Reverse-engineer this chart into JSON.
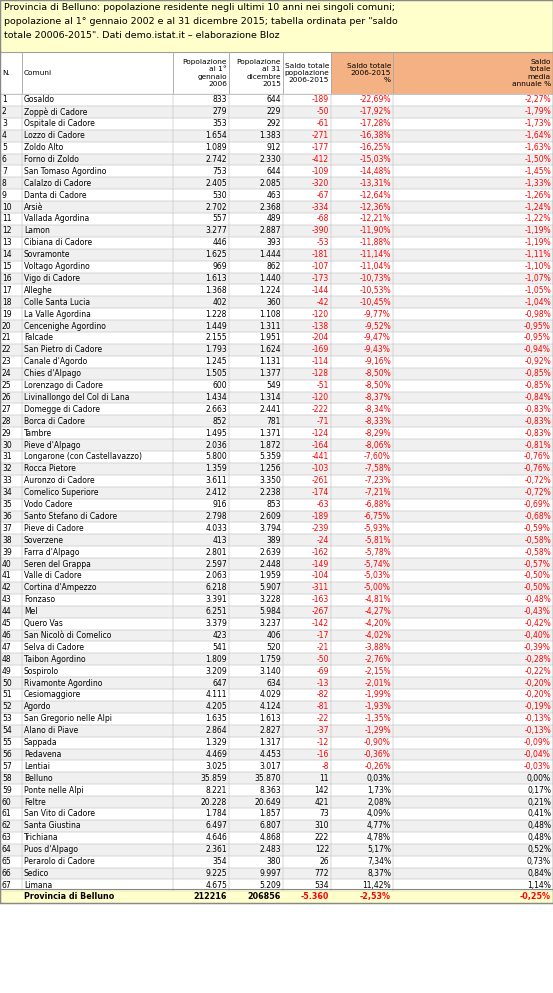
{
  "title": "Provincia di Belluno: popolazione residente negli ultimi 10 anni nei singoli comuni;\npopolazione al 1° gennaio 2002 e al 31 dicembre 2015; tabella ordinata per \"saldo\ntotale 20006-2015\". Dati demo.istat.it – elaborazione Bloz",
  "title_bg": "#ffffcc",
  "orange_bg": "#f4b183",
  "white_bg": "#ffffff",
  "footer_bg": "#ffffcc",
  "red_color": "#ff0000",
  "black_color": "#000000",
  "grid_color": "#aaaaaa",
  "rows": [
    [
      1,
      "Gosaldo",
      833,
      644,
      -189,
      "-22,69%",
      "-2,27%"
    ],
    [
      2,
      "Zoppè di Cadore",
      279,
      229,
      -50,
      "-17,92%",
      "-1,79%"
    ],
    [
      3,
      "Ospitale di Cadore",
      353,
      292,
      -61,
      "-17,28%",
      "-1,73%"
    ],
    [
      4,
      "Lozzo di Cadore",
      1654,
      1383,
      -271,
      "-16,38%",
      "-1,64%"
    ],
    [
      5,
      "Zoldo Alto",
      1089,
      912,
      -177,
      "-16,25%",
      "-1,63%"
    ],
    [
      6,
      "Forno di Zoldo",
      2742,
      2330,
      -412,
      "-15,03%",
      "-1,50%"
    ],
    [
      7,
      "San Tomaso Agordino",
      753,
      644,
      -109,
      "-14,48%",
      "-1,45%"
    ],
    [
      8,
      "Calalzo di Cadore",
      2405,
      2085,
      -320,
      "-13,31%",
      "-1,33%"
    ],
    [
      9,
      "Danta di Cadore",
      530,
      463,
      -67,
      "-12,64%",
      "-1,26%"
    ],
    [
      10,
      "Arsiè",
      2702,
      2368,
      -334,
      "-12,36%",
      "-1,24%"
    ],
    [
      11,
      "Vallada Agordina",
      557,
      489,
      -68,
      "-12,21%",
      "-1,22%"
    ],
    [
      12,
      "Lamon",
      3277,
      2887,
      -390,
      "-11,90%",
      "-1,19%"
    ],
    [
      13,
      "Cibiana di Cadore",
      446,
      393,
      -53,
      "-11,88%",
      "-1,19%"
    ],
    [
      14,
      "Sovramonte",
      1625,
      1444,
      -181,
      "-11,14%",
      "-1,11%"
    ],
    [
      15,
      "Voltago Agordino",
      969,
      862,
      -107,
      "-11,04%",
      "-1,10%"
    ],
    [
      16,
      "Vigo di Cadore",
      1613,
      1440,
      -173,
      "-10,73%",
      "-1,07%"
    ],
    [
      17,
      "Alleghe",
      1368,
      1224,
      -144,
      "-10,53%",
      "-1,05%"
    ],
    [
      18,
      "Colle Santa Lucia",
      402,
      360,
      -42,
      "-10,45%",
      "-1,04%"
    ],
    [
      19,
      "La Valle Agordina",
      1228,
      1108,
      -120,
      "-9,77%",
      "-0,98%"
    ],
    [
      20,
      "Cencenighe Agordino",
      1449,
      1311,
      -138,
      "-9,52%",
      "-0,95%"
    ],
    [
      21,
      "Falcade",
      2155,
      1951,
      -204,
      "-9,47%",
      "-0,95%"
    ],
    [
      22,
      "San Pietro di Cadore",
      1793,
      1624,
      -169,
      "-9,43%",
      "-0,94%"
    ],
    [
      23,
      "Canale d'Agordo",
      1245,
      1131,
      -114,
      "-9,16%",
      "-0,92%"
    ],
    [
      24,
      "Chies d'Alpago",
      1505,
      1377,
      -128,
      "-8,50%",
      "-0,85%"
    ],
    [
      25,
      "Lorenzago di Cadore",
      600,
      549,
      -51,
      "-8,50%",
      "-0,85%"
    ],
    [
      26,
      "Livinallongo del Col di Lana",
      1434,
      1314,
      -120,
      "-8,37%",
      "-0,84%"
    ],
    [
      27,
      "Domegge di Cadore",
      2663,
      2441,
      -222,
      "-8,34%",
      "-0,83%"
    ],
    [
      28,
      "Borca di Cadore",
      852,
      781,
      -71,
      "-8,33%",
      "-0,83%"
    ],
    [
      29,
      "Tambre",
      1495,
      1371,
      -124,
      "-8,29%",
      "-0,83%"
    ],
    [
      30,
      "Pieve d'Alpago",
      2036,
      1872,
      -164,
      "-8,06%",
      "-0,81%"
    ],
    [
      31,
      "Longarone (con Castellavazzo)",
      5800,
      5359,
      -441,
      "-7,60%",
      "-0,76%"
    ],
    [
      32,
      "Rocca Pietore",
      1359,
      1256,
      -103,
      "-7,58%",
      "-0,76%"
    ],
    [
      33,
      "Auronzo di Cadore",
      3611,
      3350,
      -261,
      "-7,23%",
      "-0,72%"
    ],
    [
      34,
      "Comelico Superiore",
      2412,
      2238,
      -174,
      "-7,21%",
      "-0,72%"
    ],
    [
      35,
      "Vodo Cadore",
      916,
      853,
      -63,
      "-6,88%",
      "-0,69%"
    ],
    [
      36,
      "Santo Stefano di Cadore",
      2798,
      2609,
      -189,
      "-6,75%",
      "-0,68%"
    ],
    [
      37,
      "Pieve di Cadore",
      4033,
      3794,
      -239,
      "-5,93%",
      "-0,59%"
    ],
    [
      38,
      "Soverzene",
      413,
      389,
      -24,
      "-5,81%",
      "-0,58%"
    ],
    [
      39,
      "Farra d'Alpago",
      2801,
      2639,
      -162,
      "-5,78%",
      "-0,58%"
    ],
    [
      40,
      "Seren del Grappa",
      2597,
      2448,
      -149,
      "-5,74%",
      "-0,57%"
    ],
    [
      41,
      "Valle di Cadore",
      2063,
      1959,
      -104,
      "-5,03%",
      "-0,50%"
    ],
    [
      42,
      "Cortina d'Ampezzo",
      6218,
      5907,
      -311,
      "-5,00%",
      "-0,50%"
    ],
    [
      43,
      "Fonzaso",
      3391,
      3228,
      -163,
      "-4,81%",
      "-0,48%"
    ],
    [
      44,
      "Mel",
      6251,
      5984,
      -267,
      "-4,27%",
      "-0,43%"
    ],
    [
      45,
      "Quero Vas",
      3379,
      3237,
      -142,
      "-4,20%",
      "-0,42%"
    ],
    [
      46,
      "San Nicolò di Comelico",
      423,
      406,
      -17,
      "-4,02%",
      "-0,40%"
    ],
    [
      47,
      "Selva di Cadore",
      541,
      520,
      -21,
      "-3,88%",
      "-0,39%"
    ],
    [
      48,
      "Taibon Agordino",
      1809,
      1759,
      -50,
      "-2,76%",
      "-0,28%"
    ],
    [
      49,
      "Sospirolo",
      3209,
      3140,
      -69,
      "-2,15%",
      "-0,22%"
    ],
    [
      50,
      "Rivamonte Agordino",
      647,
      634,
      -13,
      "-2,01%",
      "-0,20%"
    ],
    [
      51,
      "Cesiomaggiore",
      4111,
      4029,
      -82,
      "-1,99%",
      "-0,20%"
    ],
    [
      52,
      "Agordo",
      4205,
      4124,
      -81,
      "-1,93%",
      "-0,19%"
    ],
    [
      53,
      "San Gregorio nelle Alpi",
      1635,
      1613,
      -22,
      "-1,35%",
      "-0,13%"
    ],
    [
      54,
      "Alano di Piave",
      2864,
      2827,
      -37,
      "-1,29%",
      "-0,13%"
    ],
    [
      55,
      "Sappada",
      1329,
      1317,
      -12,
      "-0,90%",
      "-0,09%"
    ],
    [
      56,
      "Pedavena",
      4469,
      4453,
      -16,
      "-0,36%",
      "-0,04%"
    ],
    [
      57,
      "Lentiai",
      3025,
      3017,
      -8,
      "-0,26%",
      "-0,03%"
    ],
    [
      58,
      "Belluno",
      35859,
      35870,
      11,
      "0,03%",
      "0,00%"
    ],
    [
      59,
      "Ponte nelle Alpi",
      8221,
      8363,
      142,
      "1,73%",
      "0,17%"
    ],
    [
      60,
      "Feltre",
      20228,
      20649,
      421,
      "2,08%",
      "0,21%"
    ],
    [
      61,
      "San Vito di Cadore",
      1784,
      1857,
      73,
      "4,09%",
      "0,41%"
    ],
    [
      62,
      "Santa Giustina",
      6497,
      6807,
      310,
      "4,77%",
      "0,48%"
    ],
    [
      63,
      "Trichiana",
      4646,
      4868,
      222,
      "4,78%",
      "0,48%"
    ],
    [
      64,
      "Puos d'Alpago",
      2361,
      2483,
      122,
      "5,17%",
      "0,52%"
    ],
    [
      65,
      "Perarolo di Cadore",
      354,
      380,
      26,
      "7,34%",
      "0,73%"
    ],
    [
      66,
      "Sedico",
      9225,
      9997,
      772,
      "8,37%",
      "0,84%"
    ],
    [
      67,
      "Limana",
      4675,
      5209,
      534,
      "11,42%",
      "1,14%"
    ]
  ],
  "footer": [
    "",
    "Provincia di Belluno",
    "212216",
    "206856",
    "-5.360",
    "-2,53%",
    "-0,25%"
  ],
  "col_headers": [
    "N.",
    "Comuni",
    "Popolazione\nal 1°\ngennaio\n2006",
    "Popolazione\nal 31\ndicembre\n2015",
    "Saldo totale\npopolazione\n2006-2015",
    "Saldo totale\n2006-2015\n%",
    "Saldo\ntotale\nmedia\nannuale %"
  ],
  "col_orange": [
    false,
    false,
    false,
    false,
    false,
    true,
    true
  ]
}
